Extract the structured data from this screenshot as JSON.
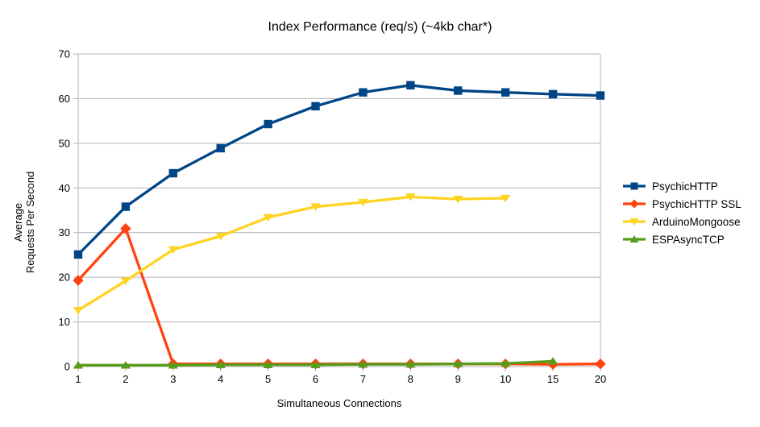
{
  "chart": {
    "title": "Index Performance (req/s) (~4kb char*)"
  },
  "chart_data": {
    "type": "line",
    "title": "Index Performance (req/s) (~4kb char*)",
    "xlabel": "Simultaneous Connections",
    "ylabel": "Average Requests Per Second",
    "ylabel_lines": [
      "Average",
      "Requests Per Second"
    ],
    "categories": [
      "1",
      "2",
      "3",
      "4",
      "5",
      "6",
      "7",
      "8",
      "9",
      "10",
      "15",
      "20"
    ],
    "ylim": [
      0,
      70
    ],
    "ytick_step": 10,
    "ytick_labels": [
      "0",
      "10",
      "20",
      "30",
      "40",
      "50",
      "60",
      "70"
    ],
    "grid": "horizontal-major",
    "legend_position": "right",
    "grid_color": "#b3b3b3",
    "series": [
      {
        "name": "PsychicHTTP",
        "color": "#004586",
        "marker": "square",
        "values": [
          25.1,
          35.8,
          43.3,
          48.9,
          54.3,
          58.3,
          61.4,
          63.0,
          61.8,
          61.4,
          61.0,
          60.7
        ]
      },
      {
        "name": "PsychicHTTP SSL",
        "color": "#FF420E",
        "marker": "diamond",
        "values": [
          19.3,
          30.9,
          0.6,
          0.6,
          0.6,
          0.6,
          0.6,
          0.6,
          0.6,
          0.6,
          0.5,
          0.6
        ]
      },
      {
        "name": "ArduinoMongoose",
        "color": "#FFD320",
        "marker": "triangle-down",
        "values": [
          12.6,
          19.2,
          26.2,
          29.2,
          33.4,
          35.8,
          36.8,
          38.0,
          37.5,
          37.7
        ]
      },
      {
        "name": "ESPAsyncTCP",
        "color": "#579D1C",
        "marker": "triangle-up",
        "values": [
          0.3,
          0.3,
          0.3,
          0.4,
          0.4,
          0.4,
          0.5,
          0.5,
          0.6,
          0.7,
          1.2
        ]
      }
    ]
  }
}
